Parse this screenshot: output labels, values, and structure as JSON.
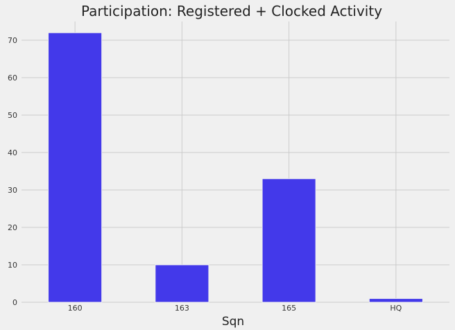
{
  "chart_data": {
    "type": "bar",
    "title": "Participation: Registered + Clocked Activity",
    "xlabel": "Sqn",
    "ylabel": "",
    "categories": [
      "160",
      "163",
      "165",
      "HQ"
    ],
    "values": [
      72,
      10,
      33,
      1
    ],
    "ylim": [
      0,
      75
    ],
    "yticks": [
      0,
      10,
      20,
      30,
      40,
      50,
      60,
      70
    ],
    "grid": true,
    "legend": "none",
    "colors": {
      "bar": "#4339ea",
      "background": "#f0f0f0",
      "grid": "#cbcbcb"
    }
  }
}
